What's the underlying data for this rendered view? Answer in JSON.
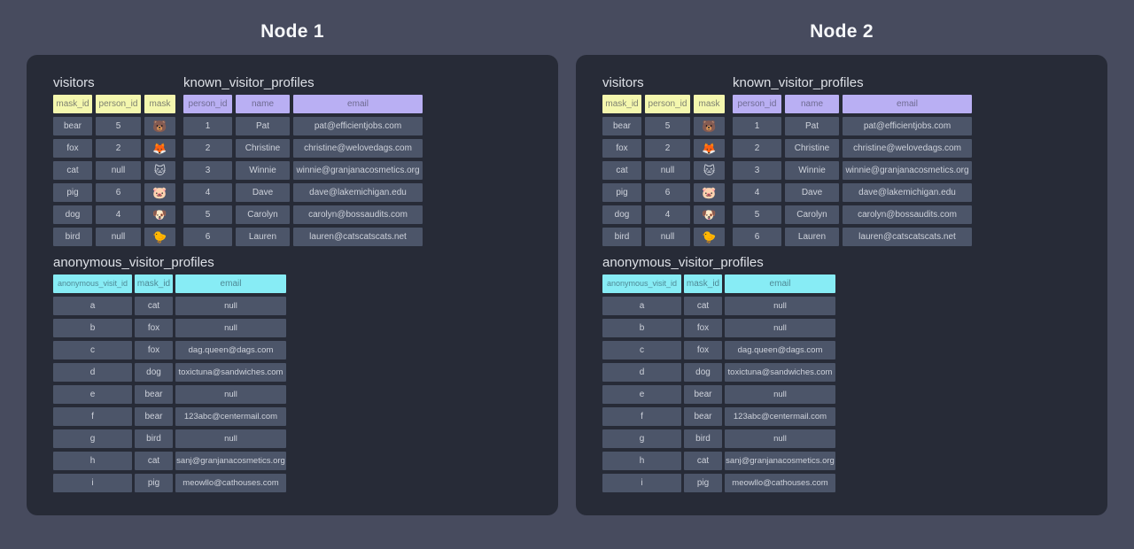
{
  "colors": {
    "page_bg": "#474b5e",
    "panel_bg": "#272b37",
    "cell_bg": "#4c5569",
    "cell_text": "#ced2db",
    "table_title_text": "#dde0e6",
    "node_title_text": "#f7f8fa",
    "yellow_header_bg": "#f4f7ae",
    "yellow_header_text": "#7e8171",
    "purple_header_bg": "#b9aff3",
    "purple_header_text": "#6f6b92",
    "cyan_header_bg": "#87ecf5",
    "cyan_header_text": "#4e8995"
  },
  "nodes": [
    {
      "title": "Node 1",
      "tables": [
        {
          "title": "visitors",
          "theme": "yellow",
          "columns": [
            "mask_id",
            "person_id",
            "mask"
          ],
          "rows": [
            [
              "bear",
              "5",
              "🐻"
            ],
            [
              "fox",
              "2",
              "🦊"
            ],
            [
              "cat",
              "null",
              "🐱"
            ],
            [
              "pig",
              "6",
              "🐷"
            ],
            [
              "dog",
              "4",
              "🐶"
            ],
            [
              "bird",
              "null",
              "🐤"
            ]
          ]
        },
        {
          "title": "known_visitor_profiles",
          "theme": "purple",
          "columns": [
            "person_id",
            "name",
            "email"
          ],
          "rows": [
            [
              "1",
              "Pat",
              "pat@efficientjobs.com"
            ],
            [
              "2",
              "Christine",
              "christine@welovedags.com"
            ],
            [
              "3",
              "Winnie",
              "winnie@granjanacosmetics.org"
            ],
            [
              "4",
              "Dave",
              "dave@lakemichigan.edu"
            ],
            [
              "5",
              "Carolyn",
              "carolyn@bossaudits.com"
            ],
            [
              "6",
              "Lauren",
              "lauren@catscatscats.net"
            ]
          ]
        },
        {
          "title": "anonymous_visitor_profiles",
          "theme": "cyan",
          "columns": [
            "anonymous_visit_id",
            "mask_id",
            "email"
          ],
          "rows": [
            [
              "a",
              "cat",
              "null"
            ],
            [
              "b",
              "fox",
              "null"
            ],
            [
              "c",
              "fox",
              "dag.queen@dags.com"
            ],
            [
              "d",
              "dog",
              "toxictuna@sandwiches.com"
            ],
            [
              "e",
              "bear",
              "null"
            ],
            [
              "f",
              "bear",
              "123abc@centermail.com"
            ],
            [
              "g",
              "bird",
              "null"
            ],
            [
              "h",
              "cat",
              "sanj@granjanacosmetics.org"
            ],
            [
              "i",
              "pig",
              "meowllo@cathouses.com"
            ]
          ]
        }
      ]
    },
    {
      "title": "Node 2",
      "tables": [
        {
          "title": "visitors",
          "theme": "yellow",
          "columns": [
            "mask_id",
            "person_id",
            "mask"
          ],
          "rows": [
            [
              "bear",
              "5",
              "🐻"
            ],
            [
              "fox",
              "2",
              "🦊"
            ],
            [
              "cat",
              "null",
              "🐱"
            ],
            [
              "pig",
              "6",
              "🐷"
            ],
            [
              "dog",
              "4",
              "🐶"
            ],
            [
              "bird",
              "null",
              "🐤"
            ]
          ]
        },
        {
          "title": "known_visitor_profiles",
          "theme": "purple",
          "columns": [
            "person_id",
            "name",
            "email"
          ],
          "rows": [
            [
              "1",
              "Pat",
              "pat@efficientjobs.com"
            ],
            [
              "2",
              "Christine",
              "christine@welovedags.com"
            ],
            [
              "3",
              "Winnie",
              "winnie@granjanacosmetics.org"
            ],
            [
              "4",
              "Dave",
              "dave@lakemichigan.edu"
            ],
            [
              "5",
              "Carolyn",
              "carolyn@bossaudits.com"
            ],
            [
              "6",
              "Lauren",
              "lauren@catscatscats.net"
            ]
          ]
        },
        {
          "title": "anonymous_visitor_profiles",
          "theme": "cyan",
          "columns": [
            "anonymous_visit_id",
            "mask_id",
            "email"
          ],
          "rows": [
            [
              "a",
              "cat",
              "null"
            ],
            [
              "b",
              "fox",
              "null"
            ],
            [
              "c",
              "fox",
              "dag.queen@dags.com"
            ],
            [
              "d",
              "dog",
              "toxictuna@sandwiches.com"
            ],
            [
              "e",
              "bear",
              "null"
            ],
            [
              "f",
              "bear",
              "123abc@centermail.com"
            ],
            [
              "g",
              "bird",
              "null"
            ],
            [
              "h",
              "cat",
              "sanj@granjanacosmetics.org"
            ],
            [
              "i",
              "pig",
              "meowllo@cathouses.com"
            ]
          ]
        }
      ]
    }
  ]
}
